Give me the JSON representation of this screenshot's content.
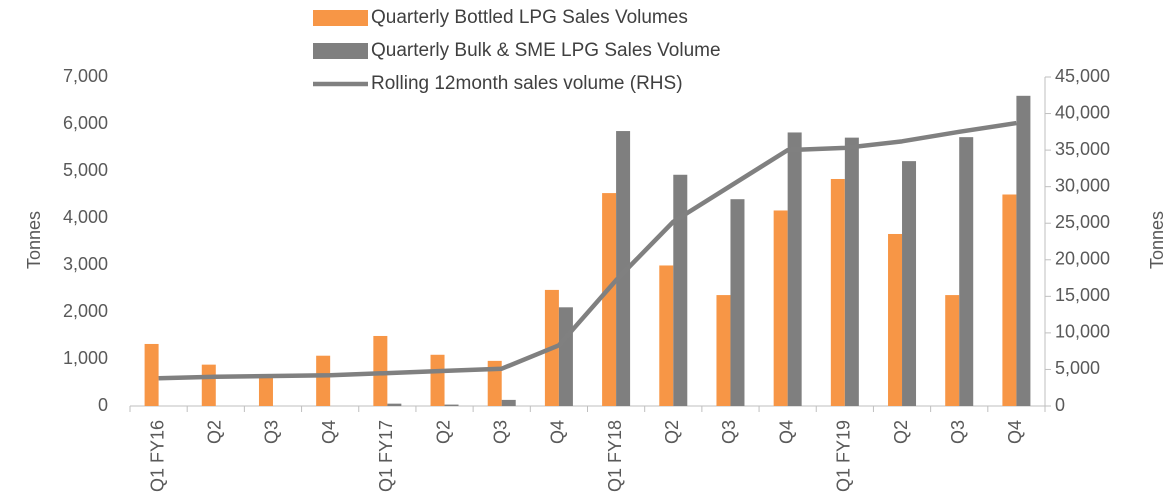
{
  "chart_data": {
    "type": "bar_line",
    "categories": [
      "Q1 FY16",
      "Q2",
      "Q3",
      "Q4",
      "Q1 FY17",
      "Q2",
      "Q3",
      "Q4",
      "Q1 FY18",
      "Q2",
      "Q3",
      "Q4",
      "Q1 FY19",
      "Q2",
      "Q3",
      "Q4"
    ],
    "series": [
      {
        "name": "Quarterly Bottled LPG Sales Volumes",
        "color": "#f79646",
        "type": "bar",
        "values": [
          1320,
          880,
          680,
          1070,
          1490,
          1090,
          960,
          2470,
          4530,
          2990,
          2360,
          4160,
          4830,
          3660,
          2360,
          4500
        ]
      },
      {
        "name": "Quarterly Bulk & SME LPG Sales Volume",
        "color": "#7f7f7f",
        "type": "bar",
        "values": [
          0,
          0,
          0,
          0,
          50,
          30,
          130,
          2100,
          5850,
          4920,
          4400,
          5820,
          5710,
          5210,
          5720,
          6600
        ]
      },
      {
        "name": "Rolling 12month sales volume (RHS)",
        "color": "#808080",
        "type": "line",
        "axis": "y2",
        "values": [
          3800,
          4000,
          4100,
          4200,
          4500,
          4800,
          5100,
          8300,
          17200,
          25200,
          30100,
          35000,
          35300,
          36200,
          37500,
          38700
        ]
      }
    ],
    "ylabel": "Tonnes",
    "y2label": "Tonnes",
    "ylim": [
      0,
      7000
    ],
    "yticks": [
      0,
      {
        "value": 1000,
        "label": "1,000"
      },
      {
        "value": 2000,
        "label": "2,000"
      },
      {
        "value": 3000,
        "label": "3,000"
      },
      {
        "value": 4000,
        "label": "4,000"
      },
      {
        "value": 5000,
        "label": "5,000"
      },
      {
        "value": 6000,
        "label": "6,000"
      },
      {
        "value": 7000,
        "label": "7,000"
      }
    ],
    "y2lim": [
      0,
      45000
    ],
    "y2ticks": [
      0,
      {
        "value": 5000,
        "label": "5,000"
      },
      {
        "value": 10000,
        "label": "10,000"
      },
      {
        "value": 15000,
        "label": "15,000"
      },
      {
        "value": 20000,
        "label": "20,000"
      },
      {
        "value": 25000,
        "label": "25,000"
      },
      {
        "value": 30000,
        "label": "30,000"
      },
      {
        "value": 35000,
        "label": "35,000"
      },
      {
        "value": 40000,
        "label": "40,000"
      },
      {
        "value": 45000,
        "label": "45,000"
      }
    ],
    "legend": "top"
  }
}
